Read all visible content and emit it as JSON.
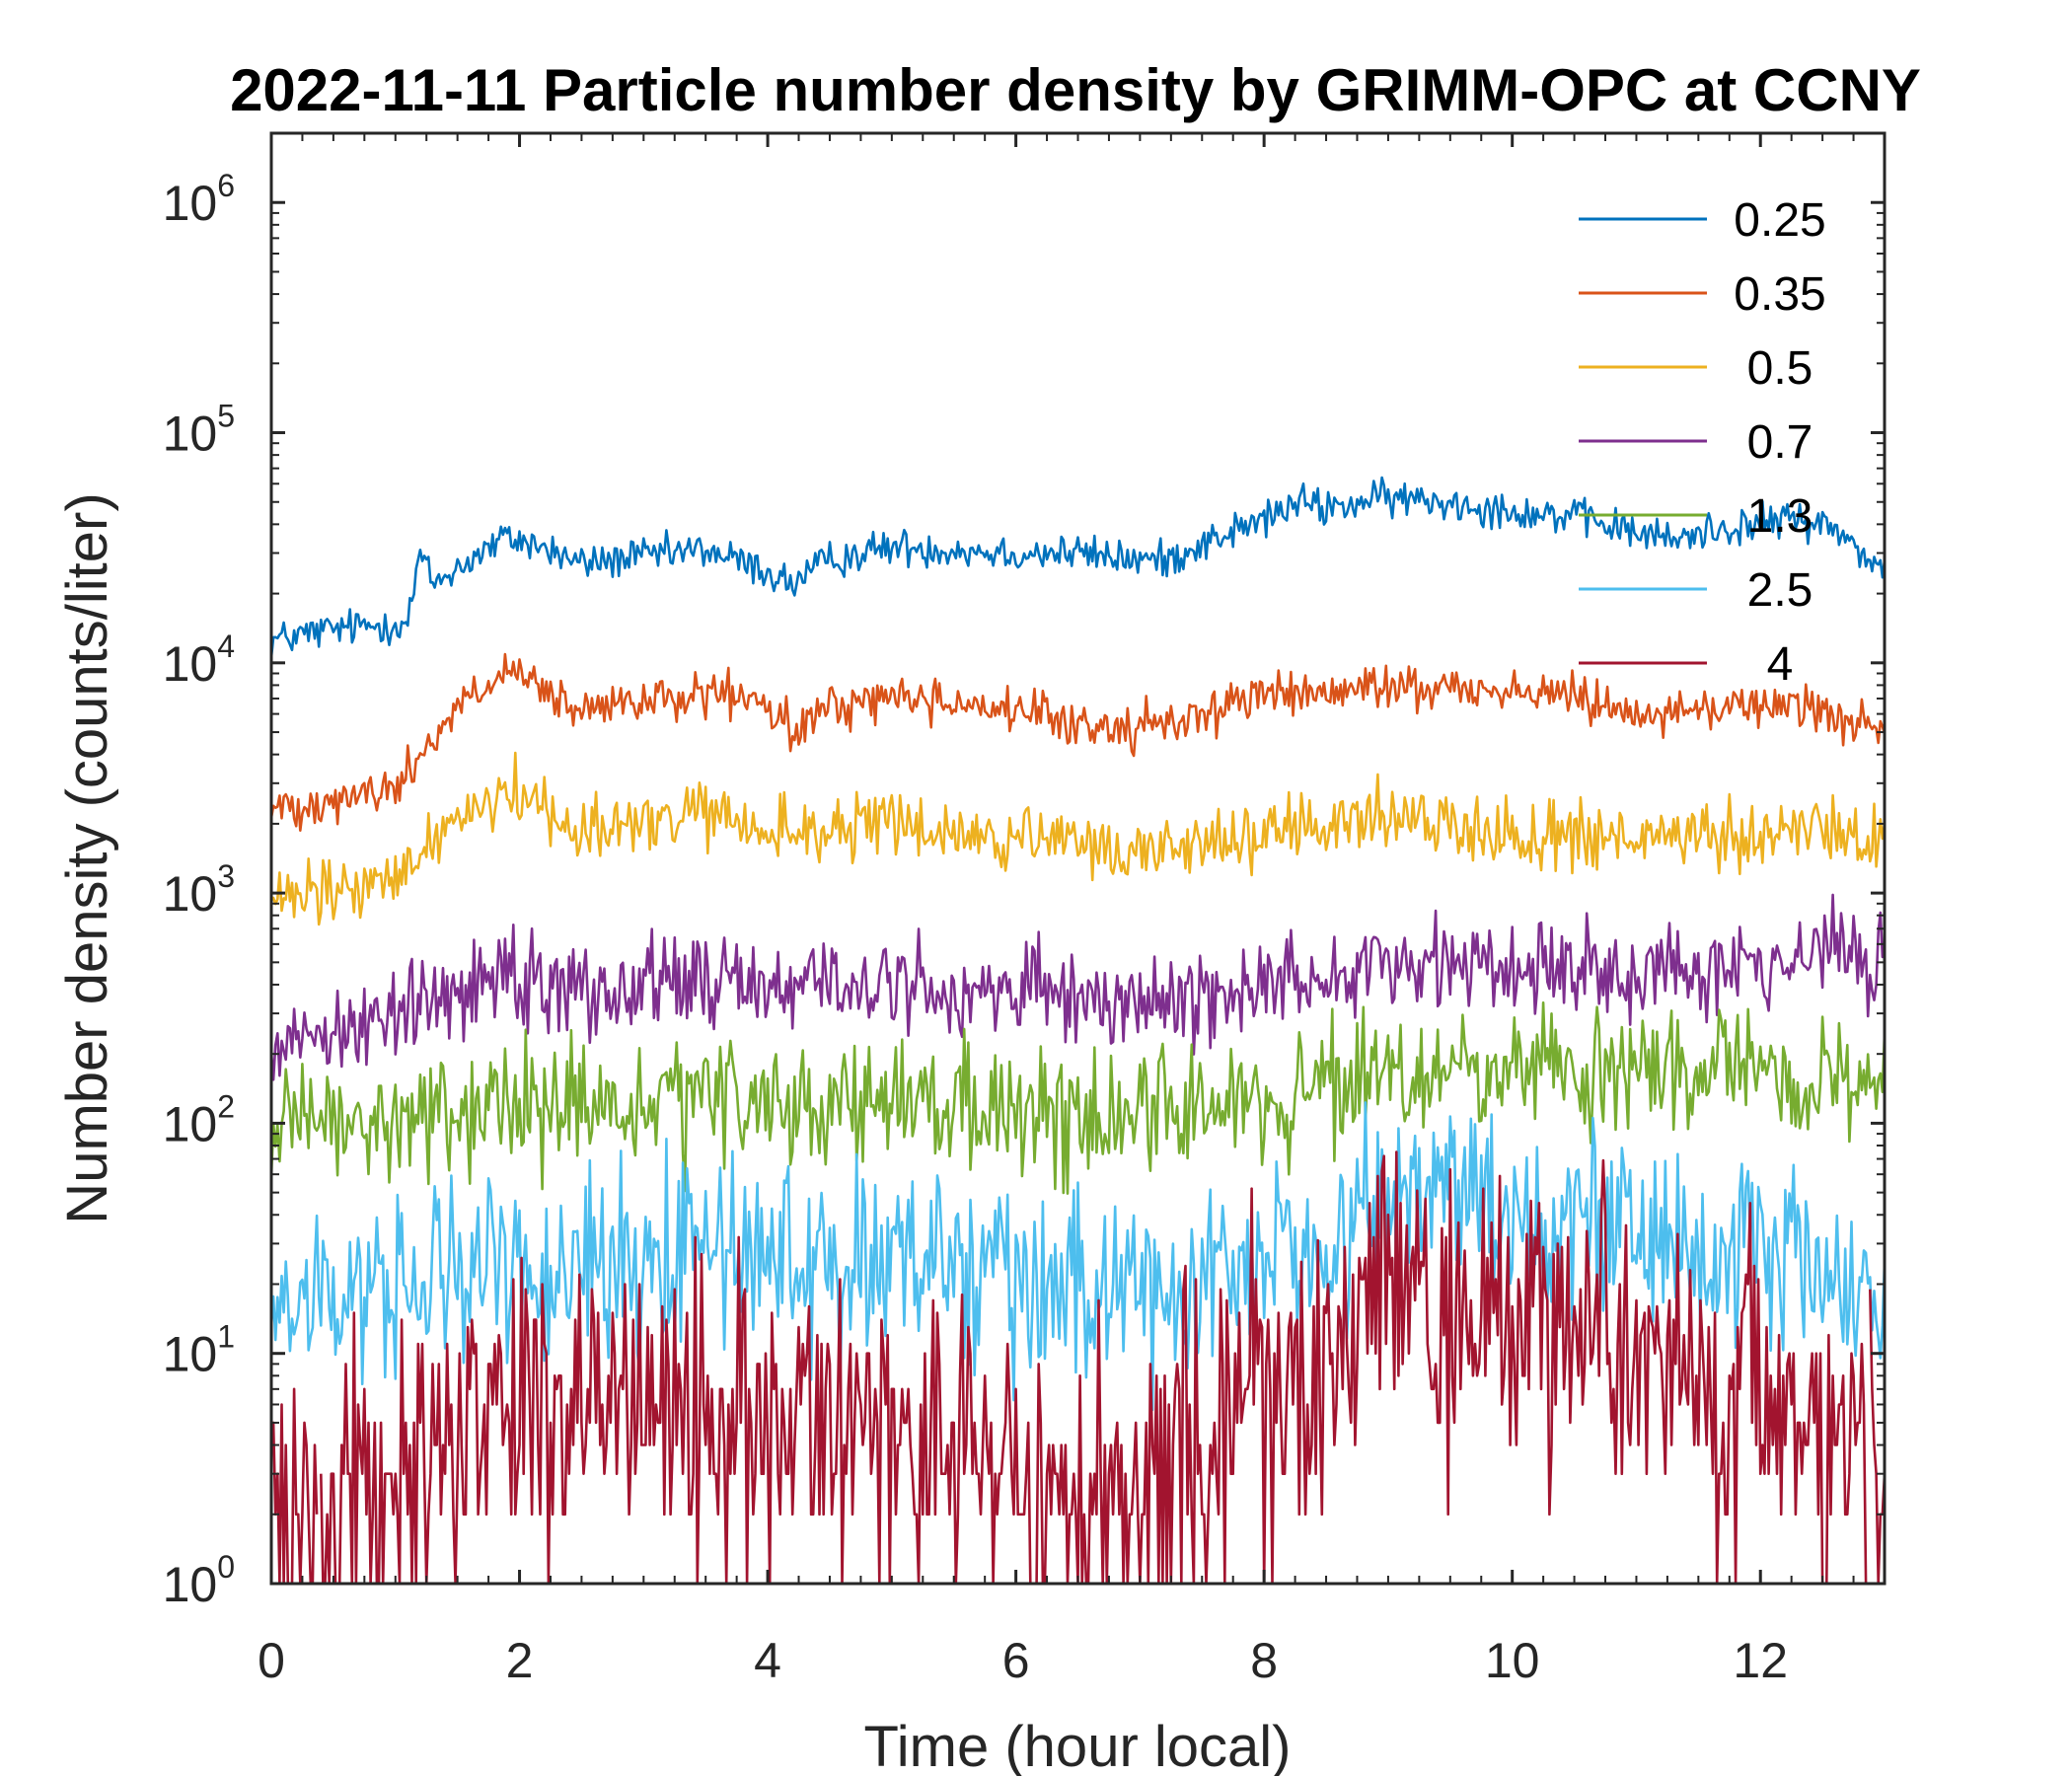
{
  "chart_data": {
    "type": "line",
    "title": "2022-11-11 Particle number density by GRIMM-OPC at CCNY",
    "xlabel": "Time (hour local)",
    "ylabel": "Number density (counts/liter)",
    "xlim": [
      0,
      13
    ],
    "ylim": [
      1,
      2000000
    ],
    "yscale": "log",
    "xticks": [
      0,
      2,
      4,
      6,
      8,
      10,
      12
    ],
    "xtick_labels": [
      "0",
      "2",
      "4",
      "6",
      "8",
      "10",
      "12"
    ],
    "yticks": [
      1,
      10,
      100,
      1000,
      10000,
      100000,
      1000000
    ],
    "ytick_labels": [
      {
        "base": "10",
        "exp": "0"
      },
      {
        "base": "10",
        "exp": "1"
      },
      {
        "base": "10",
        "exp": "2"
      },
      {
        "base": "10",
        "exp": "3"
      },
      {
        "base": "10",
        "exp": "4"
      },
      {
        "base": "10",
        "exp": "5"
      },
      {
        "base": "10",
        "exp": "6"
      }
    ],
    "legend_position": "top-right",
    "series": [
      {
        "name": "0.25",
        "legend_label": "0.25",
        "color": "#0072BD",
        "noise": 0.05,
        "floor": 0,
        "x": [
          0,
          0.5,
          1.1,
          1.2,
          1.3,
          1.6,
          1.9,
          2.1,
          2.5,
          3.0,
          3.5,
          3.9,
          4.2,
          4.5,
          5.0,
          5.5,
          6.0,
          6.5,
          7.0,
          7.2,
          7.5,
          8.0,
          8.3,
          8.5,
          9.0,
          9.5,
          10.0,
          10.5,
          11.0,
          11.3,
          11.6,
          12.0,
          12.3,
          12.6,
          13.0
        ],
        "values": [
          12500,
          14000,
          15000,
          30000,
          22000,
          28000,
          35000,
          33000,
          27000,
          29000,
          31000,
          26000,
          22000,
          28000,
          32000,
          31000,
          30000,
          30000,
          28000,
          28000,
          33000,
          42000,
          50000,
          47000,
          52000,
          50000,
          46000,
          43000,
          37000,
          34000,
          38000,
          40000,
          43000,
          38000,
          25000
        ]
      },
      {
        "name": "0.35",
        "legend_label": "0.35",
        "color": "#D95319",
        "noise": 0.06,
        "floor": 0,
        "x": [
          0,
          0.5,
          1.0,
          1.2,
          1.5,
          1.9,
          2.1,
          2.5,
          3.0,
          3.5,
          3.9,
          4.2,
          4.5,
          5.0,
          5.5,
          6.0,
          6.5,
          7.0,
          7.5,
          8.0,
          8.5,
          9.0,
          9.5,
          10.0,
          10.5,
          11.0,
          11.3,
          11.6,
          12.0,
          12.5,
          13.0
        ],
        "values": [
          2300,
          2600,
          2800,
          4000,
          6500,
          9000,
          8000,
          6000,
          6800,
          7300,
          6900,
          5000,
          6400,
          7200,
          6800,
          6200,
          5300,
          5200,
          6000,
          7500,
          7200,
          8000,
          7800,
          7600,
          7200,
          6300,
          6000,
          6300,
          6700,
          6400,
          4800
        ]
      },
      {
        "name": "0.5",
        "legend_label": "0.5",
        "color": "#EDB120",
        "noise": 0.09,
        "floor": 0,
        "x": [
          0,
          0.5,
          1.0,
          1.2,
          1.5,
          1.9,
          2.1,
          2.5,
          3.0,
          3.5,
          4.0,
          4.5,
          5.0,
          5.5,
          6.0,
          6.5,
          7.0,
          7.5,
          8.0,
          8.5,
          9.0,
          9.5,
          10.0,
          10.5,
          11.0,
          11.5,
          12.0,
          12.5,
          13.0
        ],
        "values": [
          900,
          1000,
          1100,
          1500,
          2200,
          2800,
          2500,
          1900,
          2000,
          2200,
          1800,
          1900,
          2000,
          1800,
          1700,
          1600,
          1500,
          1700,
          1800,
          1900,
          2200,
          2000,
          1800,
          1800,
          1700,
          1700,
          1800,
          1900,
          1600
        ]
      },
      {
        "name": "0.7",
        "legend_label": "0.7",
        "color": "#7E2F8E",
        "noise": 0.13,
        "floor": 0,
        "x": [
          0,
          0.5,
          1.0,
          1.5,
          1.9,
          2.2,
          2.5,
          3.0,
          3.5,
          4.0,
          4.5,
          5.0,
          5.5,
          6.0,
          6.5,
          7.0,
          7.5,
          8.0,
          8.5,
          9.0,
          9.5,
          10.0,
          10.5,
          11.0,
          11.5,
          12.0,
          12.5,
          13.0
        ],
        "values": [
          230,
          260,
          290,
          380,
          480,
          430,
          380,
          400,
          420,
          410,
          400,
          390,
          380,
          370,
          340,
          330,
          360,
          400,
          440,
          520,
          500,
          470,
          470,
          470,
          480,
          490,
          520,
          520
        ]
      },
      {
        "name": "1.3",
        "legend_label": "1.3",
        "color": "#77AC30",
        "noise": 0.17,
        "floor": 0,
        "x": [
          0,
          0.5,
          1.0,
          1.5,
          2.0,
          2.5,
          3.0,
          3.5,
          4.0,
          4.5,
          5.0,
          5.5,
          6.0,
          6.5,
          7.0,
          7.5,
          8.0,
          8.5,
          9.0,
          9.5,
          10.0,
          10.5,
          11.0,
          11.5,
          12.0,
          12.5,
          13.0
        ],
        "values": [
          90,
          95,
          100,
          110,
          120,
          115,
          110,
          120,
          130,
          120,
          120,
          115,
          105,
          110,
          115,
          120,
          125,
          140,
          155,
          160,
          165,
          160,
          165,
          170,
          165,
          160,
          150
        ]
      },
      {
        "name": "2.5",
        "legend_label": "2.5",
        "color": "#4DBEEE",
        "noise": 0.26,
        "floor": 0,
        "x": [
          0,
          0.5,
          1.0,
          1.5,
          2.0,
          2.5,
          3.0,
          3.5,
          4.0,
          4.5,
          5.0,
          5.5,
          6.0,
          6.5,
          7.0,
          7.5,
          8.0,
          8.5,
          9.0,
          9.3,
          9.6,
          10.0,
          10.5,
          11.0,
          11.5,
          12.0,
          12.5,
          13.0
        ],
        "values": [
          15,
          18,
          20,
          22,
          26,
          25,
          28,
          26,
          30,
          25,
          24,
          22,
          20,
          21,
          20,
          22,
          26,
          30,
          45,
          55,
          45,
          38,
          40,
          35,
          30,
          25,
          22,
          18
        ]
      },
      {
        "name": "4",
        "legend_label": "4",
        "color": "#A2142F",
        "noise": 0.42,
        "floor": 1,
        "x": [
          0,
          0.5,
          1.0,
          1.5,
          2.0,
          2.5,
          3.0,
          3.5,
          4.0,
          4.5,
          5.0,
          5.5,
          6.0,
          6.5,
          7.0,
          7.5,
          8.0,
          8.5,
          9.0,
          9.3,
          9.6,
          10.0,
          10.5,
          11.0,
          11.5,
          12.0,
          12.5,
          13.0
        ],
        "values": [
          2,
          2.5,
          3,
          5,
          7,
          7,
          6,
          6,
          6,
          5,
          5,
          4,
          3,
          3,
          3,
          4,
          7,
          12,
          16,
          18,
          15,
          13,
          12,
          10,
          8,
          6,
          4,
          3
        ]
      }
    ]
  }
}
